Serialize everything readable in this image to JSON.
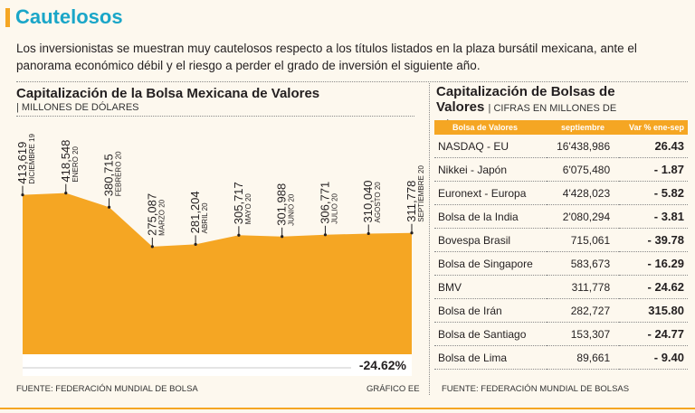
{
  "header": {
    "title": "Cautelosos"
  },
  "intro": "Los inversionistas se muestran muy cautelosos respecto a los títulos listados en la plaza bursátil mexicana, ante el panorama económico débil y el riesgo a perder el grado de inversión el siguiente año.",
  "left": {
    "title": "Capitalización de la Bolsa Mexicana de Valores",
    "unit": "| MILLONES DE DÓLARES",
    "change_label": "-24.62%",
    "source": "FUENTE: FEDERACIÓN MUNDIAL DE BOLSA",
    "credit": "GRÁFICO EE"
  },
  "chart_data": {
    "type": "area",
    "title": "Capitalización de la Bolsa Mexicana de Valores",
    "ylabel": "MILLONES DE DÓLARES",
    "categories": [
      "DICIEMBRE 19",
      "ENERO 20",
      "FEBRERO 20",
      "MARZO 20",
      "ABRIL 20",
      "MAYO 20",
      "JUNIO 20",
      "JULIO 20",
      "AGOSTO 20",
      "SEPTIEMBRE 20"
    ],
    "values": [
      413619,
      418548,
      380715,
      275087,
      281204,
      305717,
      301988,
      306771,
      310040,
      311778
    ],
    "value_labels": [
      "413,619",
      "418,548",
      "380,715",
      "275,087",
      "281,204",
      "305,717",
      "301,988",
      "306,771",
      "310,040",
      "311,778"
    ],
    "fill_color": "#f5a623",
    "change_pct_label": "-24.62%"
  },
  "right": {
    "title_main": "Capitalización de Bolsas de Valores",
    "title_sub": "| CIFRAS EN MILLONES DE DÓLARES",
    "headers": [
      "Bolsa de Valores",
      "septiembre",
      "Var % ene-sep"
    ],
    "rows": [
      [
        "NASDAQ - EU",
        "16'438,986",
        "26.43"
      ],
      [
        "Nikkei - Japón",
        "6'075,480",
        "- 1.87"
      ],
      [
        "Euronext - Europa",
        "4'428,023",
        "- 5.82"
      ],
      [
        "Bolsa de la India",
        "2'080,294",
        "- 3.81"
      ],
      [
        "Bovespa Brasil",
        "715,061",
        "- 39.78"
      ],
      [
        "Bolsa de Singapore",
        "583,673",
        "- 16.29"
      ],
      [
        "BMV",
        "311,778",
        "- 24.62"
      ],
      [
        "Bolsa de Irán",
        "282,727",
        "315.80"
      ],
      [
        "Bolsa de Santiago",
        "153,307",
        "- 24.77"
      ],
      [
        "Bolsa de Lima",
        "89,661",
        "- 9.40"
      ]
    ],
    "source": "FUENTE: FEDERACIÓN MUNDIAL DE BOLSAS"
  }
}
